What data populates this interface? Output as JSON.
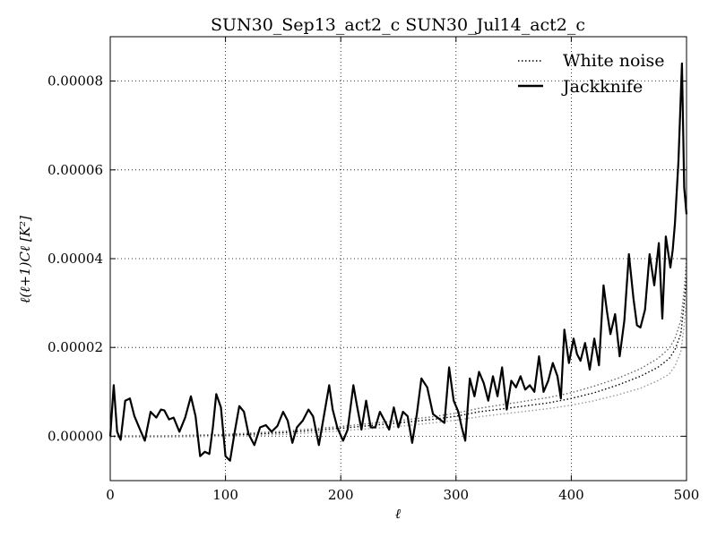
{
  "chart_data": {
    "type": "line",
    "title": "SUN30_Sep13_act2_c SUN30_Jul14_act2_c",
    "xlabel": "ℓ",
    "ylabel": "ℓ(ℓ+1)Cℓ [K²]",
    "xlim": [
      0,
      500
    ],
    "ylim": [
      -1e-05,
      9e-05
    ],
    "x_ticks": [
      0,
      100,
      200,
      300,
      400,
      500
    ],
    "x_tick_labels": [
      "0",
      "100",
      "200",
      "300",
      "400",
      "500"
    ],
    "y_ticks": [
      0,
      2e-05,
      4e-05,
      6e-05,
      8e-05
    ],
    "y_tick_labels": [
      "0.00000",
      "0.00002",
      "0.00004",
      "0.00006",
      "0.00008"
    ],
    "grid": true,
    "legend_position": "top-right",
    "series": [
      {
        "name": "White noise",
        "style": "dotted",
        "color": "#000000",
        "x": [
          0,
          50,
          100,
          150,
          200,
          250,
          280,
          300,
          320,
          350,
          380,
          400,
          420,
          440,
          460,
          475,
          485,
          490,
          495,
          498,
          500
        ],
        "y": [
          0,
          0,
          2e-07,
          8e-07,
          1.8e-06,
          3e-06,
          3.8e-06,
          4.5e-06,
          5.5e-06,
          6.5e-06,
          7.5e-06,
          8.5e-06,
          9.8e-06,
          1.15e-05,
          1.35e-05,
          1.55e-05,
          1.75e-05,
          1.95e-05,
          2.3e-05,
          3e-05,
          3.6e-05
        ]
      },
      {
        "name": "",
        "style": "dotted",
        "color": "#999999",
        "x": [
          0,
          50,
          100,
          150,
          200,
          250,
          280,
          300,
          320,
          350,
          380,
          400,
          420,
          440,
          460,
          475,
          485,
          490,
          495,
          498,
          500
        ],
        "y": [
          -2e-07,
          -2e-07,
          0,
          4e-07,
          1.2e-06,
          2.2e-06,
          3e-06,
          3.6e-06,
          4.4e-06,
          5.3e-06,
          6.2e-06,
          7e-06,
          8e-06,
          9.3e-06,
          1.08e-05,
          1.25e-05,
          1.4e-05,
          1.58e-05,
          1.9e-05,
          2.5e-05,
          3.1e-05
        ]
      },
      {
        "name": "",
        "style": "dotted",
        "color": "#666666",
        "x": [
          0,
          50,
          100,
          150,
          200,
          250,
          280,
          300,
          320,
          350,
          380,
          400,
          420,
          440,
          460,
          475,
          485,
          490,
          495,
          498,
          500
        ],
        "y": [
          1e-07,
          1e-07,
          4e-07,
          1.1e-06,
          2.2e-06,
          3.5e-06,
          4.4e-06,
          5.2e-06,
          6.3e-06,
          7.5e-06,
          8.7e-06,
          9.8e-06,
          1.13e-05,
          1.3e-05,
          1.52e-05,
          1.75e-05,
          1.98e-05,
          2.2e-05,
          2.6e-05,
          3.3e-05,
          4e-05
        ]
      },
      {
        "name": "Jackknife",
        "style": "solid",
        "color": "#000000",
        "x": [
          0,
          3,
          6,
          9,
          13,
          17,
          21,
          25,
          30,
          35,
          40,
          44,
          47,
          51,
          55,
          60,
          65,
          70,
          74,
          78,
          82,
          86,
          89,
          92,
          96,
          100,
          104,
          108,
          112,
          116,
          120,
          125,
          130,
          135,
          140,
          145,
          150,
          154,
          158,
          162,
          167,
          172,
          176,
          181,
          186,
          190,
          193,
          197,
          202,
          206,
          211,
          214,
          218,
          222,
          226,
          230,
          234,
          238,
          242,
          246,
          250,
          254,
          258,
          262,
          266,
          270,
          275,
          280,
          285,
          290,
          294,
          298,
          302,
          305,
          308,
          312,
          316,
          320,
          324,
          328,
          332,
          336,
          340,
          344,
          348,
          352,
          356,
          360,
          364,
          368,
          372,
          376,
          380,
          384,
          388,
          391,
          394,
          398,
          402,
          405,
          408,
          412,
          416,
          420,
          424,
          428,
          431,
          434,
          438,
          442,
          446,
          450,
          454,
          457,
          460,
          464,
          468,
          472,
          476,
          479,
          482,
          486,
          488,
          490,
          493,
          496,
          498,
          500
        ],
        "y": [
          0,
          1.15e-05,
          1e-06,
          -8e-07,
          8e-06,
          8.5e-06,
          4.5e-06,
          2e-06,
          -1e-06,
          5.5e-06,
          4.2e-06,
          6e-06,
          5.8e-06,
          3.8e-06,
          4.2e-06,
          1e-06,
          4.2e-06,
          9e-06,
          4.5e-06,
          -4.5e-06,
          -3.5e-06,
          -4e-06,
          2e-06,
          9.5e-06,
          6.5e-06,
          -4.5e-06,
          -5.5e-06,
          1e-06,
          6.8e-06,
          5.5e-06,
          5e-07,
          -2e-06,
          2e-06,
          2.5e-06,
          1e-06,
          2.3e-06,
          5.5e-06,
          3.5e-06,
          -1.5e-06,
          2e-06,
          3.5e-06,
          6e-06,
          4.5e-06,
          -2e-06,
          5.5e-06,
          1.15e-05,
          6e-06,
          2e-06,
          -1e-06,
          1.5e-06,
          1.15e-05,
          7e-06,
          1.5e-06,
          8e-06,
          2e-06,
          2e-06,
          5.5e-06,
          3.5e-06,
          1.5e-06,
          6.5e-06,
          2e-06,
          5.5e-06,
          4.5e-06,
          -1.5e-06,
          5e-06,
          1.3e-05,
          1.1e-05,
          5e-06,
          4e-06,
          3e-06,
          1.55e-05,
          8e-06,
          5.5e-06,
          2e-06,
          -1e-06,
          1.3e-05,
          9e-06,
          1.45e-05,
          1.2e-05,
          8e-06,
          1.35e-05,
          9e-06,
          1.55e-05,
          6e-06,
          1.25e-05,
          1.1e-05,
          1.35e-05,
          1.05e-05,
          1.15e-05,
          1e-05,
          1.8e-05,
          1e-05,
          1.25e-05,
          1.65e-05,
          1.35e-05,
          8.5e-06,
          2.4e-05,
          1.65e-05,
          2.2e-05,
          1.85e-05,
          1.7e-05,
          2.1e-05,
          1.5e-05,
          2.2e-05,
          1.6e-05,
          3.4e-05,
          2.8e-05,
          2.3e-05,
          2.75e-05,
          1.8e-05,
          2.6e-05,
          4.1e-05,
          3.1e-05,
          2.5e-05,
          2.45e-05,
          2.85e-05,
          4.1e-05,
          3.4e-05,
          4.35e-05,
          2.65e-05,
          4.5e-05,
          3.8e-05,
          4.2e-05,
          4.8e-05,
          6.2e-05,
          8.4e-05,
          5.6e-05,
          5e-05
        ]
      }
    ]
  }
}
